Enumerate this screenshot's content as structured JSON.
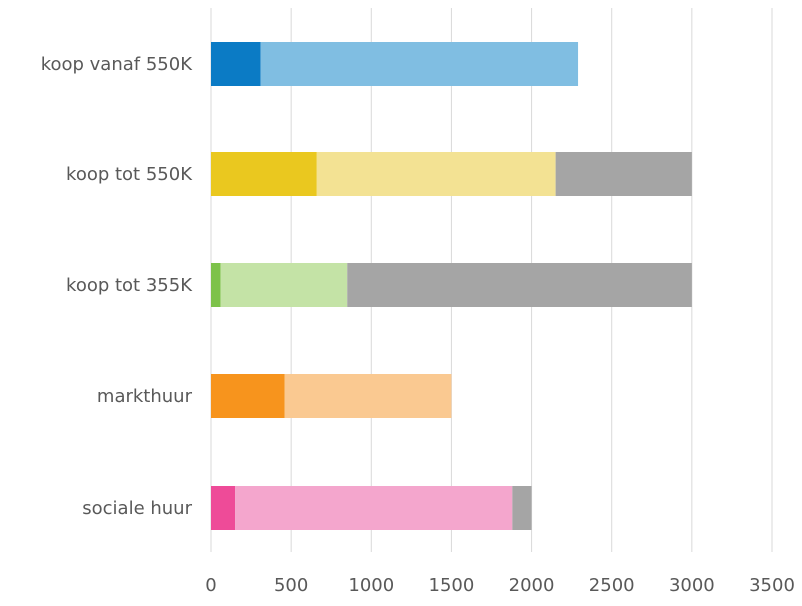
{
  "chart_data": {
    "type": "bar",
    "orientation": "horizontal",
    "stacked": true,
    "title": "",
    "xlabel": "",
    "ylabel": "",
    "categories": [
      "koop vanaf 550K",
      "koop tot 550K",
      "koop tot 355K",
      "markthuur",
      "sociale huur"
    ],
    "xlim": [
      0,
      3500
    ],
    "x_ticks": [
      "0",
      "500",
      "1000",
      "1500",
      "2000",
      "2500",
      "3000",
      "3500"
    ],
    "grid": "vertical",
    "legend": "none",
    "bars": [
      {
        "category": "koop vanaf 550K",
        "segments": [
          {
            "value": 310,
            "color": "#0b7bc5"
          },
          {
            "value": 1980,
            "color": "#80bee2"
          }
        ]
      },
      {
        "category": "koop tot 550K",
        "segments": [
          {
            "value": 660,
            "color": "#eac81f"
          },
          {
            "value": 1490,
            "color": "#f3e293"
          },
          {
            "value": 850,
            "color": "#a5a5a5"
          }
        ]
      },
      {
        "category": "koop tot 355K",
        "segments": [
          {
            "value": 60,
            "color": "#7dc24a"
          },
          {
            "value": 790,
            "color": "#c4e3a6"
          },
          {
            "value": 2150,
            "color": "#a5a5a5"
          }
        ]
      },
      {
        "category": "markthuur",
        "segments": [
          {
            "value": 460,
            "color": "#f7941d"
          },
          {
            "value": 1040,
            "color": "#fac991"
          }
        ]
      },
      {
        "category": "sociale huur",
        "segments": [
          {
            "value": 150,
            "color": "#ee4b98"
          },
          {
            "value": 1730,
            "color": "#f4a6cd"
          },
          {
            "value": 120,
            "color": "#a5a5a5"
          }
        ]
      }
    ]
  }
}
